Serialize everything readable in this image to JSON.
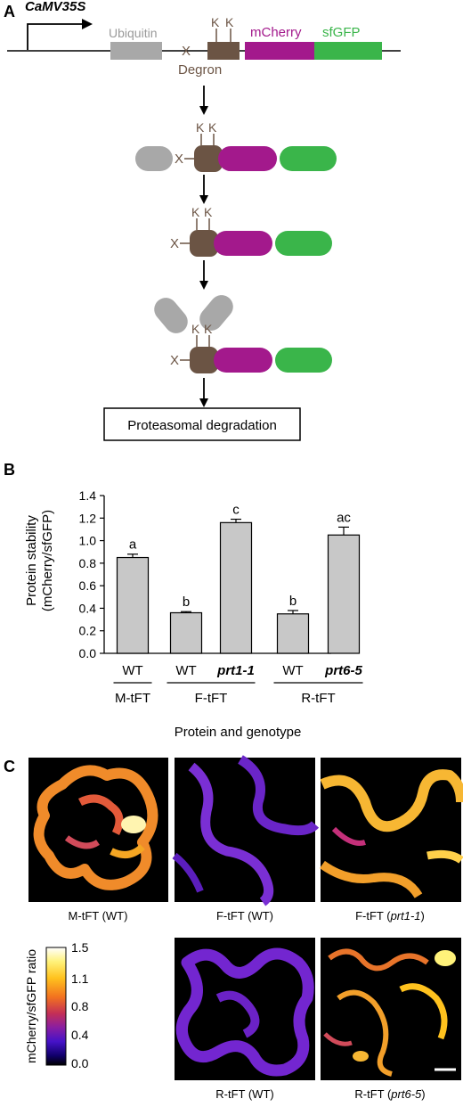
{
  "panels": {
    "a": {
      "label": "A",
      "promoter": "CaMV35S",
      "ubiquitin": "Ubiquitin",
      "x": "X",
      "k": "K",
      "mcherry": "mCherry",
      "sfgfp": "sfGFP",
      "degron": "Degron",
      "proteasome_box": "Proteasomal degradation",
      "colors": {
        "ubiquitin": "#a8a8a8",
        "degron": "#6b5444",
        "mcherry": "#a3198c",
        "sfgfp": "#3ab54a",
        "grey": "#8c8c8c"
      }
    },
    "b": {
      "label": "B",
      "xlabel": "Protein and genotype",
      "ylabel_line1": "Protein stability",
      "ylabel_line2": "(mCherry/sfGFP)",
      "groups": [
        "M-tFT",
        "F-tFT",
        "R-tFT"
      ]
    },
    "c": {
      "label": "C",
      "images": [
        {
          "caption": "M-tFT (WT)"
        },
        {
          "caption": "F-tFT (WT)"
        },
        {
          "caption_pre": "F-tFT (",
          "caption_it": "prt1-1",
          "caption_post": ")"
        },
        {
          "caption": "R-tFT (WT)"
        },
        {
          "caption_pre": "R-tFT (",
          "caption_it": "prt6-5",
          "caption_post": ")"
        }
      ],
      "colorbar": {
        "label": "mCherry/sfGFP ratio",
        "ticks": [
          "1.5",
          "1.1",
          "0.8",
          "0.4",
          "0.0"
        ],
        "colors": [
          "#ffffff",
          "#fff27a",
          "#ffc21e",
          "#f2731f",
          "#c42f56",
          "#8a1ea1",
          "#4512c8",
          "#10006a",
          "#000000"
        ]
      }
    }
  },
  "chart_data": {
    "type": "bar",
    "categories": [
      "WT",
      "WT",
      "prt1-1",
      "WT",
      "prt6-5"
    ],
    "values": [
      0.85,
      0.36,
      1.16,
      0.35,
      1.05
    ],
    "errors": [
      0.03,
      0.01,
      0.03,
      0.03,
      0.07
    ],
    "letters": [
      "a",
      "b",
      "c",
      "b",
      "ac"
    ],
    "groups": [
      {
        "name": "M-tFT",
        "bars": [
          0
        ]
      },
      {
        "name": "F-tFT",
        "bars": [
          1,
          2
        ]
      },
      {
        "name": "R-tFT",
        "bars": [
          3,
          4
        ]
      }
    ],
    "italic": [
      false,
      false,
      true,
      false,
      true
    ],
    "ylim": [
      0,
      1.4
    ],
    "yticks": [
      "0.0",
      "0.2",
      "0.4",
      "0.6",
      "0.8",
      "1.0",
      "1.2",
      "1.4"
    ],
    "bar_color": "#c8c8c8",
    "xlabel": "Protein and genotype",
    "ylabel": "Protein stability (mCherry/sfGFP)",
    "grid": false
  }
}
